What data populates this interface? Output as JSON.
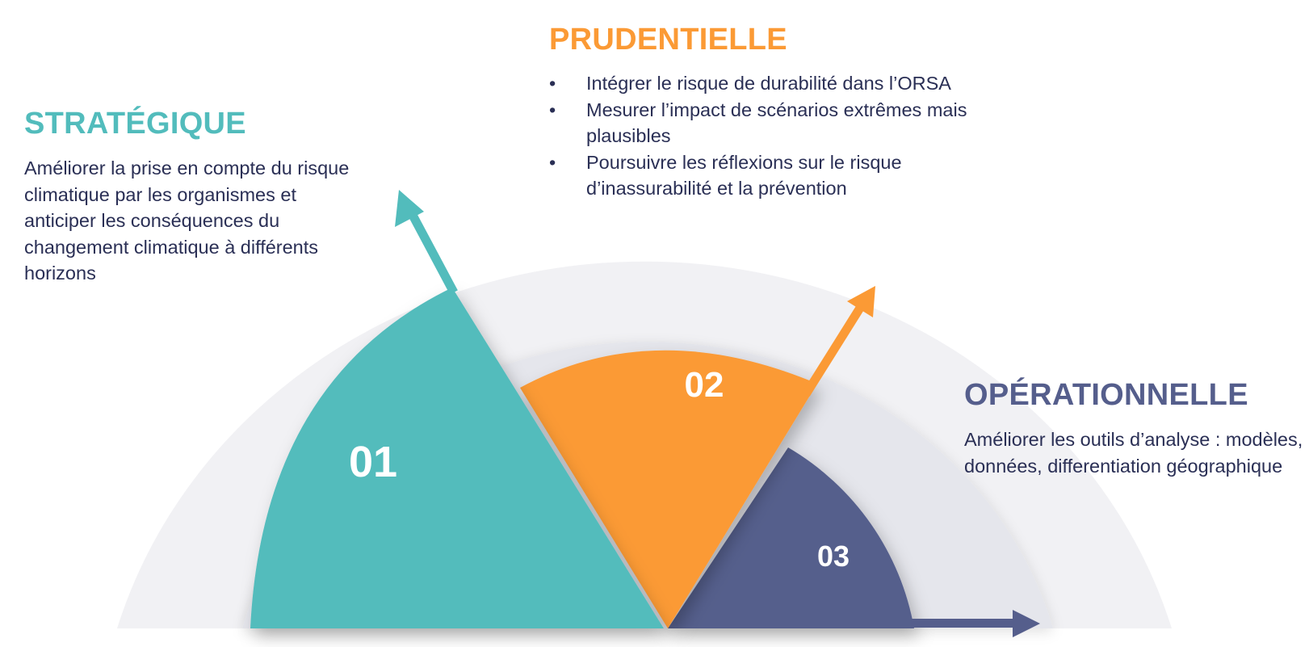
{
  "colors": {
    "teal": "#52bcbc",
    "orange": "#fb9a35",
    "navy": "#555e8c",
    "outer_ring": "#f1f1f4",
    "middle_ring": "#e5e6ec",
    "text": "#2a2f55"
  },
  "strategique": {
    "title": "STRATÉGIQUE",
    "body": "Améliorer la prise en compte du risque climatique par les organismes et anticiper les conséquences du changement climatique à différents horizons",
    "number": "01",
    "icon": "arrow-up-left-icon"
  },
  "prudentielle": {
    "title": "PRUDENTIELLE",
    "items": [
      "Intégrer le risque de durabilité dans l’ORSA",
      "Mesurer l’impact de scénarios extrêmes mais plausibles",
      "Poursuivre les réflexions sur le risque d’inassurabilité et la prévention"
    ],
    "number": "02",
    "icon": "arrow-up-right-icon"
  },
  "operationnelle": {
    "title": "OPÉRATIONNELLE",
    "body": "Améliorer les outils d’analyse : modèles, données, differentiation géographique",
    "number": "03",
    "icon": "arrow-right-icon"
  }
}
